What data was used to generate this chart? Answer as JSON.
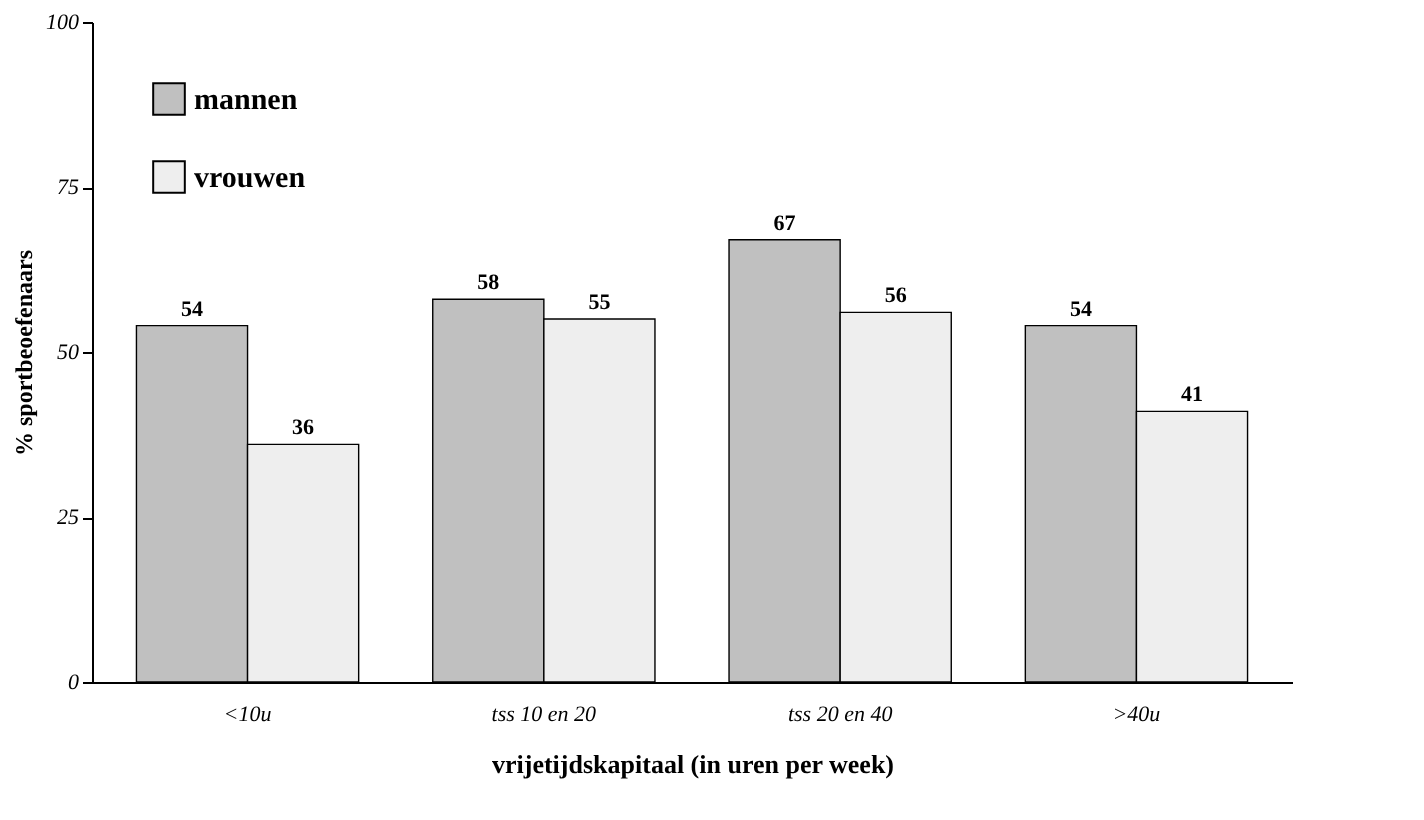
{
  "chart_data": {
    "type": "bar",
    "xlabel": "vrijetijdskapitaal (in uren per week)",
    "ylabel": "% sportbeoefenaars",
    "categories": [
      "<10u",
      "tss 10 en 20",
      "tss 20 en 40",
      ">40u"
    ],
    "series": [
      {
        "name": "mannen",
        "color": "#c0c0c0",
        "values": [
          54,
          58,
          67,
          54
        ]
      },
      {
        "name": "vrouwen",
        "color": "#eeeeee",
        "values": [
          36,
          55,
          56,
          41
        ]
      }
    ],
    "ylim": [
      0,
      100
    ],
    "yticks": [
      0,
      25,
      50,
      75,
      100
    ],
    "grid": false,
    "legend": "top left",
    "data_labels": true
  }
}
